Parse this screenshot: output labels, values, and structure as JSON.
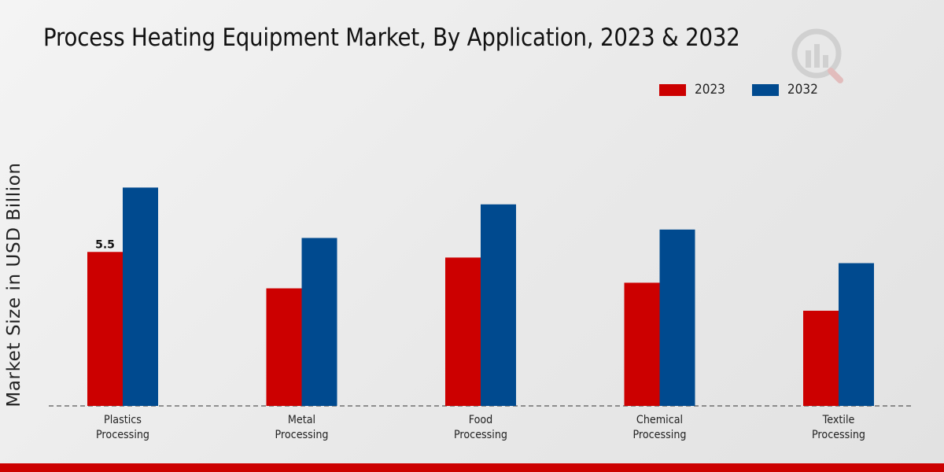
{
  "title": "Process Heating Equipment Market, By Application, 2023 & 2032",
  "colors": {
    "2023": "#cc0000",
    "2032": "#004a8f",
    "bottom_bar": "#cc0000"
  },
  "chart_data": {
    "type": "bar",
    "title": "Process Heating Equipment Market, By Application, 2023 & 2032",
    "xlabel": "",
    "ylabel": "Market Size in USD Billion",
    "categories": [
      "Plastics Processing",
      "Metal Processing",
      "Food Processing",
      "Chemical Processing",
      "Textile Processing"
    ],
    "category_lines": [
      [
        "Plastics",
        "Processing"
      ],
      [
        "Metal",
        "Processing"
      ],
      [
        "Food",
        "Processing"
      ],
      [
        "Chemical",
        "Processing"
      ],
      [
        "Textile",
        "Processing"
      ]
    ],
    "series": [
      {
        "name": "2023",
        "color": "#cc0000",
        "values": [
          5.5,
          4.2,
          5.3,
          4.4,
          3.4
        ],
        "data_labels": [
          "5.5",
          null,
          null,
          null,
          null
        ]
      },
      {
        "name": "2032",
        "color": "#004a8f",
        "values": [
          7.8,
          6.0,
          7.2,
          6.3,
          5.1
        ],
        "data_labels": [
          null,
          null,
          null,
          null,
          null
        ]
      }
    ],
    "ylim": [
      0,
      14.5
    ],
    "grid": false,
    "legend_position": "top-right",
    "baseline_style": "dashed"
  }
}
